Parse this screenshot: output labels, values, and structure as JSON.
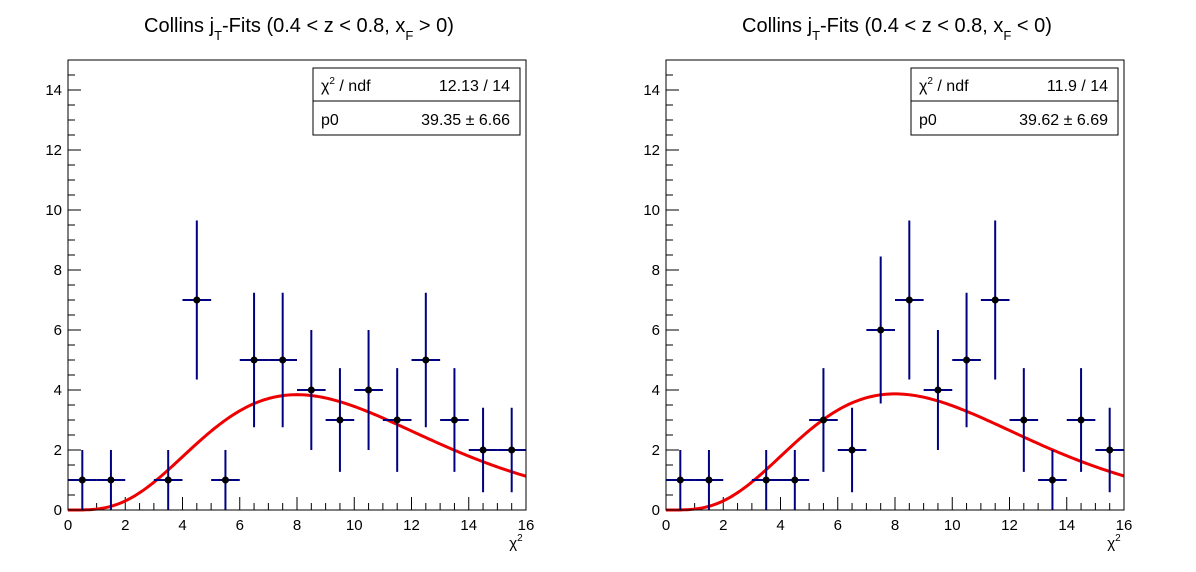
{
  "colors": {
    "marker": "#000000",
    "error_bar": "#000080",
    "fit_curve": "#ee0000",
    "frame": "#000000"
  },
  "chart_data": [
    {
      "type": "scatter",
      "title": {
        "prefix": "Collins j",
        "sub1": "T",
        "middle": "-Fits (0.4 < z < 0.8, x",
        "sub2": "F",
        "suffix": " > 0)"
      },
      "xlabel": "χ",
      "xlabel_sup": "2",
      "ylabel": "",
      "xlim": [
        0,
        16
      ],
      "ylim": [
        0,
        15
      ],
      "x_ticks": [
        "0",
        "2",
        "4",
        "6",
        "8",
        "10",
        "12",
        "14",
        "16"
      ],
      "y_ticks": [
        "0",
        "2",
        "4",
        "6",
        "8",
        "10",
        "12",
        "14"
      ],
      "grid": false,
      "legend_position": "top-right",
      "stats": {
        "row1_label": "χ",
        "row1_label_sup": "2",
        "row1_label_rest": " / ndf",
        "row1_value": "12.13 / 14",
        "row2_label": "p0",
        "row2_value": "39.35 ± 6.66"
      },
      "points": [
        {
          "x": 0.5,
          "y": 1,
          "xerr": 0.5,
          "yerr": 1.0
        },
        {
          "x": 1.5,
          "y": 1,
          "xerr": 0.5,
          "yerr": 1.0
        },
        {
          "x": 3.5,
          "y": 1,
          "xerr": 0.5,
          "yerr": 1.0
        },
        {
          "x": 4.5,
          "y": 7,
          "xerr": 0.5,
          "yerr": 2.65
        },
        {
          "x": 5.5,
          "y": 1,
          "xerr": 0.5,
          "yerr": 1.0
        },
        {
          "x": 6.5,
          "y": 5,
          "xerr": 0.5,
          "yerr": 2.24
        },
        {
          "x": 7.5,
          "y": 5,
          "xerr": 0.5,
          "yerr": 2.24
        },
        {
          "x": 8.5,
          "y": 4,
          "xerr": 0.5,
          "yerr": 2.0
        },
        {
          "x": 9.5,
          "y": 3,
          "xerr": 0.5,
          "yerr": 1.73
        },
        {
          "x": 10.5,
          "y": 4,
          "xerr": 0.5,
          "yerr": 2.0
        },
        {
          "x": 11.5,
          "y": 3,
          "xerr": 0.5,
          "yerr": 1.73
        },
        {
          "x": 12.5,
          "y": 5,
          "xerr": 0.5,
          "yerr": 2.24
        },
        {
          "x": 13.5,
          "y": 3,
          "xerr": 0.5,
          "yerr": 1.73
        },
        {
          "x": 14.5,
          "y": 2,
          "xerr": 0.5,
          "yerr": 1.41
        },
        {
          "x": 15.5,
          "y": 2,
          "xerr": 0.5,
          "yerr": 1.41
        }
      ],
      "fit": {
        "function": "chi2 pdf (ndf=10), scaled by p0",
        "p0": 39.35,
        "ndf": 10,
        "xmin": 0,
        "xmax": 16
      }
    },
    {
      "type": "scatter",
      "title": {
        "prefix": "Collins j",
        "sub1": "T",
        "middle": "-Fits (0.4 < z < 0.8, x",
        "sub2": "F",
        "suffix": " < 0)"
      },
      "xlabel": "χ",
      "xlabel_sup": "2",
      "ylabel": "",
      "xlim": [
        0,
        16
      ],
      "ylim": [
        0,
        15
      ],
      "x_ticks": [
        "0",
        "2",
        "4",
        "6",
        "8",
        "10",
        "12",
        "14",
        "16"
      ],
      "y_ticks": [
        "0",
        "2",
        "4",
        "6",
        "8",
        "10",
        "12",
        "14"
      ],
      "grid": false,
      "legend_position": "top-right",
      "stats": {
        "row1_label": "χ",
        "row1_label_sup": "2",
        "row1_label_rest": " / ndf",
        "row1_value": "11.9 / 14",
        "row2_label": "p0",
        "row2_value": "39.62 ± 6.69"
      },
      "points": [
        {
          "x": 0.5,
          "y": 1,
          "xerr": 0.5,
          "yerr": 1.0
        },
        {
          "x": 1.5,
          "y": 1,
          "xerr": 0.5,
          "yerr": 1.0
        },
        {
          "x": 3.5,
          "y": 1,
          "xerr": 0.5,
          "yerr": 1.0
        },
        {
          "x": 4.5,
          "y": 1,
          "xerr": 0.5,
          "yerr": 1.0
        },
        {
          "x": 5.5,
          "y": 3,
          "xerr": 0.5,
          "yerr": 1.73
        },
        {
          "x": 6.5,
          "y": 2,
          "xerr": 0.5,
          "yerr": 1.41
        },
        {
          "x": 7.5,
          "y": 6,
          "xerr": 0.5,
          "yerr": 2.45
        },
        {
          "x": 8.5,
          "y": 7,
          "xerr": 0.5,
          "yerr": 2.65
        },
        {
          "x": 9.5,
          "y": 4,
          "xerr": 0.5,
          "yerr": 2.0
        },
        {
          "x": 10.5,
          "y": 5,
          "xerr": 0.5,
          "yerr": 2.24
        },
        {
          "x": 11.5,
          "y": 7,
          "xerr": 0.5,
          "yerr": 2.65
        },
        {
          "x": 12.5,
          "y": 3,
          "xerr": 0.5,
          "yerr": 1.73
        },
        {
          "x": 13.5,
          "y": 1,
          "xerr": 0.5,
          "yerr": 1.0
        },
        {
          "x": 14.5,
          "y": 3,
          "xerr": 0.5,
          "yerr": 1.73
        },
        {
          "x": 15.5,
          "y": 2,
          "xerr": 0.5,
          "yerr": 1.41
        }
      ],
      "fit": {
        "function": "chi2 pdf (ndf=10), scaled by p0",
        "p0": 39.62,
        "ndf": 10,
        "xmin": 0,
        "xmax": 16
      }
    }
  ]
}
